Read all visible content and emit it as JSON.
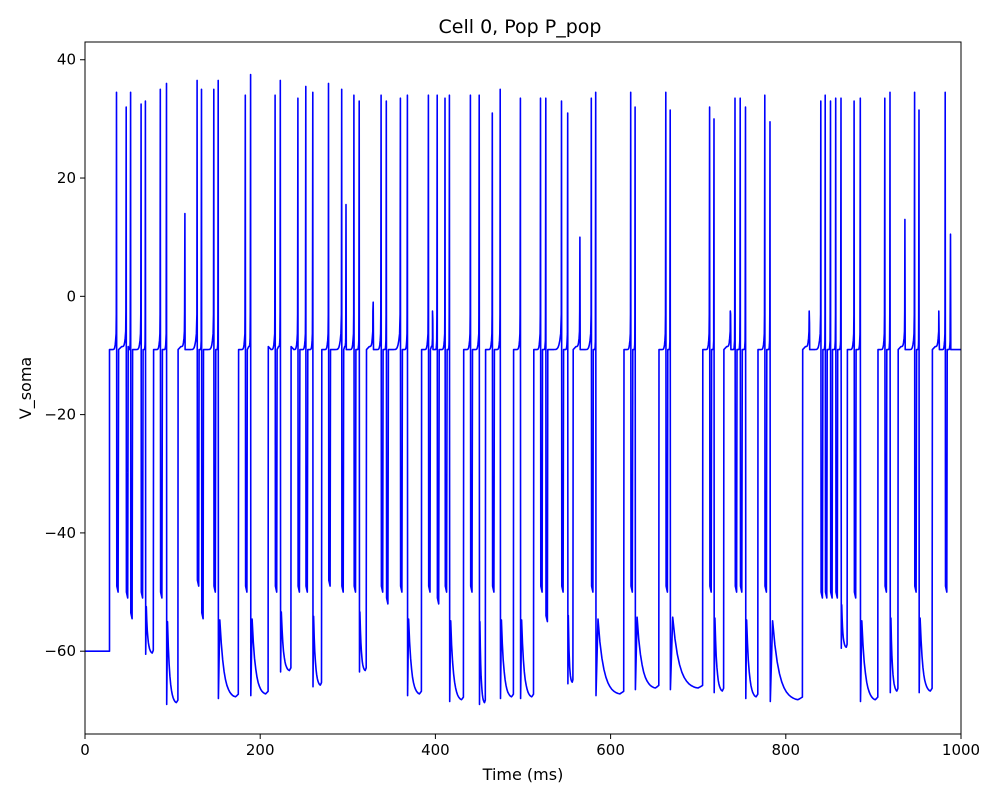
{
  "chart_data": {
    "type": "line",
    "title": "Cell 0, Pop P_pop",
    "xlabel": "Time (ms)",
    "ylabel": "V_soma",
    "xlim": [
      0,
      1000
    ],
    "ylim": [
      -74,
      43
    ],
    "xticks": [
      0,
      200,
      400,
      600,
      800,
      1000
    ],
    "xtick_labels": [
      "0",
      "200",
      "400",
      "600",
      "800",
      "1000"
    ],
    "yticks": [
      -60,
      -40,
      -20,
      0,
      20,
      40
    ],
    "ytick_labels": [
      "−60",
      "−40",
      "−20",
      "0",
      "20",
      "40"
    ],
    "grid": false,
    "series": [
      {
        "color": "#0000ff",
        "resting_potential": -60,
        "onset_ms": 28,
        "plateau_level": -9,
        "spikes": [
          {
            "t": 36,
            "peak": 34.5,
            "trough": -49,
            "plateau": -9
          },
          {
            "t": 47,
            "peak": 32,
            "trough": -50,
            "plateau": -8.5
          },
          {
            "t": 52,
            "peak": 34.5,
            "trough": -53.5,
            "plateau": -9
          },
          {
            "t": 64,
            "peak": 32.5,
            "trough": -50,
            "plateau": -9
          },
          {
            "t": 69,
            "peak": 33,
            "trough": -60.5,
            "plateau": -9
          },
          {
            "t": 86,
            "peak": 35,
            "trough": -50,
            "plateau": -9
          },
          {
            "t": 93,
            "peak": 36,
            "trough": -69,
            "plateau": -9
          },
          {
            "t": 114,
            "peak": 14,
            "trough": -9,
            "plateau": -8.5
          },
          {
            "t": 128,
            "peak": 36.5,
            "trough": -48,
            "plateau": -9
          },
          {
            "t": 133,
            "peak": 35,
            "trough": -53.5,
            "plateau": -9
          },
          {
            "t": 147,
            "peak": 35,
            "trough": -49,
            "plateau": -9
          },
          {
            "t": 152,
            "peak": 36.5,
            "trough": -68,
            "plateau": -9
          },
          {
            "t": 183,
            "peak": 34,
            "trough": -49,
            "plateau": -9
          },
          {
            "t": 189,
            "peak": 37.5,
            "trough": -67.5,
            "plateau": -8.5
          },
          {
            "t": 217,
            "peak": 34,
            "trough": -49,
            "plateau": -9
          },
          {
            "t": 223,
            "peak": 36.5,
            "trough": -63.5,
            "plateau": -8.5
          },
          {
            "t": 243,
            "peak": 33.5,
            "trough": -49,
            "plateau": -9
          },
          {
            "t": 252,
            "peak": 35.5,
            "trough": -49,
            "plateau": -9
          },
          {
            "t": 260,
            "peak": 34.5,
            "trough": -66,
            "plateau": -9
          },
          {
            "t": 278,
            "peak": 36,
            "trough": -48,
            "plateau": -9
          },
          {
            "t": 293,
            "peak": 35,
            "trough": -49,
            "plateau": -9
          },
          {
            "t": 298,
            "peak": 15.5,
            "trough": -9,
            "plateau": -8.5
          },
          {
            "t": 307,
            "peak": 34,
            "trough": -49,
            "plateau": -9
          },
          {
            "t": 313,
            "peak": 33,
            "trough": -63.5,
            "plateau": -9
          },
          {
            "t": 329,
            "peak": -1,
            "trough": -9,
            "plateau": -8.5
          },
          {
            "t": 338,
            "peak": 34,
            "trough": -49,
            "plateau": -9
          },
          {
            "t": 344,
            "peak": 33,
            "trough": -51,
            "plateau": -9
          },
          {
            "t": 360,
            "peak": 33.5,
            "trough": -49,
            "plateau": -9
          },
          {
            "t": 368,
            "peak": 34,
            "trough": -67.5,
            "plateau": -9
          },
          {
            "t": 392,
            "peak": 34,
            "trough": -49,
            "plateau": -9
          },
          {
            "t": 397,
            "peak": -4,
            "trough": -9,
            "plateau": -8.5
          },
          {
            "t": 402,
            "peak": 34,
            "trough": -51,
            "plateau": -9
          },
          {
            "t": 411,
            "peak": 33.5,
            "trough": -49,
            "plateau": -9
          },
          {
            "t": 416,
            "peak": 34,
            "trough": -68.5,
            "plateau": -9
          },
          {
            "t": 440,
            "peak": 34,
            "trough": -49,
            "plateau": -9
          },
          {
            "t": 450,
            "peak": 34,
            "trough": -69,
            "plateau": -9
          },
          {
            "t": 465,
            "peak": 31,
            "trough": -49,
            "plateau": -9
          },
          {
            "t": 474,
            "peak": 35,
            "trough": -68,
            "plateau": -9
          },
          {
            "t": 497,
            "peak": 33.5,
            "trough": -68,
            "plateau": -9
          },
          {
            "t": 520,
            "peak": 33.5,
            "trough": -49,
            "plateau": -9
          },
          {
            "t": 526,
            "peak": 33.5,
            "trough": -54,
            "plateau": -9
          },
          {
            "t": 544,
            "peak": 33,
            "trough": -49,
            "plateau": -9
          },
          {
            "t": 551,
            "peak": 31,
            "trough": -65.5,
            "plateau": -9
          },
          {
            "t": 565,
            "peak": 10,
            "trough": -9,
            "plateau": -8.5
          },
          {
            "t": 578,
            "peak": 33.5,
            "trough": -49,
            "plateau": -9
          },
          {
            "t": 583,
            "peak": 34.5,
            "trough": -67.5,
            "plateau": -9
          },
          {
            "t": 623,
            "peak": 34.5,
            "trough": -49,
            "plateau": -9
          },
          {
            "t": 628,
            "peak": 32,
            "trough": -66.5,
            "plateau": -9
          },
          {
            "t": 663,
            "peak": 34.5,
            "trough": -49,
            "plateau": -9
          },
          {
            "t": 668,
            "peak": 31.5,
            "trough": -66.5,
            "plateau": -9
          },
          {
            "t": 713,
            "peak": 32,
            "trough": -49,
            "plateau": -9
          },
          {
            "t": 718,
            "peak": 30,
            "trough": -67,
            "plateau": -9
          },
          {
            "t": 737,
            "peak": -3,
            "trough": -9,
            "plateau": -8.5
          },
          {
            "t": 742,
            "peak": 33.5,
            "trough": -49,
            "plateau": -9
          },
          {
            "t": 748,
            "peak": 33.5,
            "trough": -49,
            "plateau": -9
          },
          {
            "t": 754,
            "peak": 32,
            "trough": -68,
            "plateau": -9
          },
          {
            "t": 776,
            "peak": 34,
            "trough": -49,
            "plateau": -9
          },
          {
            "t": 782,
            "peak": 29.5,
            "trough": -68.5,
            "plateau": -9
          },
          {
            "t": 827,
            "peak": -4.5,
            "trough": -9,
            "plateau": -8.5
          },
          {
            "t": 840,
            "peak": 33,
            "trough": -50,
            "plateau": -9
          },
          {
            "t": 845,
            "peak": 34,
            "trough": -50,
            "plateau": -9
          },
          {
            "t": 851,
            "peak": 33,
            "trough": -50,
            "plateau": -9
          },
          {
            "t": 857,
            "peak": 33.5,
            "trough": -50,
            "plateau": -9
          },
          {
            "t": 863,
            "peak": 33.5,
            "trough": -59.5,
            "plateau": -9
          },
          {
            "t": 878,
            "peak": 33,
            "trough": -50,
            "plateau": -9
          },
          {
            "t": 885,
            "peak": 33.5,
            "trough": -68.5,
            "plateau": -9
          },
          {
            "t": 913,
            "peak": 33.5,
            "trough": -49,
            "plateau": -9
          },
          {
            "t": 919,
            "peak": 34.5,
            "trough": -67,
            "plateau": -9
          },
          {
            "t": 936,
            "peak": 13,
            "trough": -9,
            "plateau": -8.5
          },
          {
            "t": 947,
            "peak": 34.5,
            "trough": -49,
            "plateau": -9
          },
          {
            "t": 952,
            "peak": 31.5,
            "trough": -67,
            "plateau": -9
          },
          {
            "t": 975,
            "peak": -6.5,
            "trough": -9,
            "plateau": -8.5
          },
          {
            "t": 982,
            "peak": 34.5,
            "trough": -49,
            "plateau": -9
          },
          {
            "t": 988,
            "peak": 10.5,
            "trough": -9,
            "plateau": -9
          }
        ]
      }
    ]
  }
}
